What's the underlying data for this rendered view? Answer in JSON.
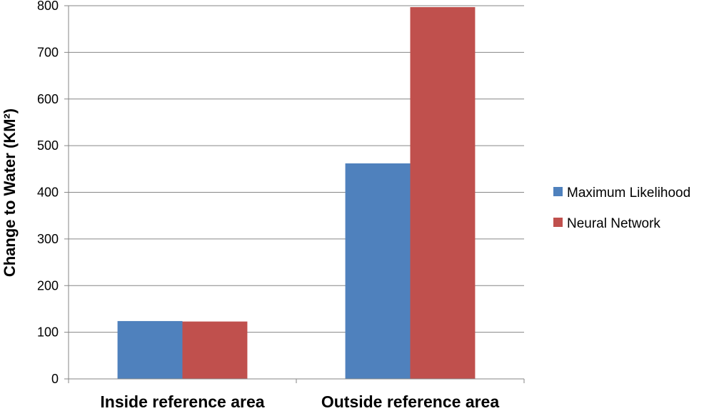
{
  "chart_data": {
    "type": "bar",
    "categories": [
      "Inside reference area",
      "Outside reference area"
    ],
    "series": [
      {
        "name": "Maximum Likelihood",
        "color": "#4f81bd",
        "values": [
          124,
          462
        ]
      },
      {
        "name": "Neural Network",
        "color": "#c0504d",
        "values": [
          123,
          797
        ]
      }
    ],
    "ylabel": "Change to Water (KM²)",
    "xlabel": "",
    "ylim": [
      0,
      800
    ],
    "yticks": [
      0,
      100,
      200,
      300,
      400,
      500,
      600,
      700,
      800
    ],
    "grid": true,
    "legend": "right"
  }
}
